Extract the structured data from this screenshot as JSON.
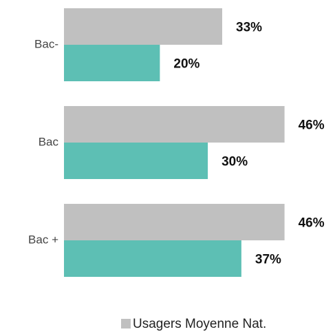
{
  "chart_data": {
    "type": "bar",
    "orientation": "horizontal",
    "categories": [
      "Bac-",
      "Bac",
      "Bac +"
    ],
    "series": [
      {
        "name": "Usagers Moyenne Nat.",
        "color": "#c0c0c0",
        "values": [
          33,
          46,
          46
        ],
        "value_labels": [
          "33%",
          "46%",
          "46%"
        ]
      },
      {
        "color": "#5dbfb4",
        "values": [
          20,
          30,
          37
        ],
        "value_labels": [
          "20%",
          "30%",
          "37%"
        ]
      }
    ],
    "legend": "bottom"
  }
}
